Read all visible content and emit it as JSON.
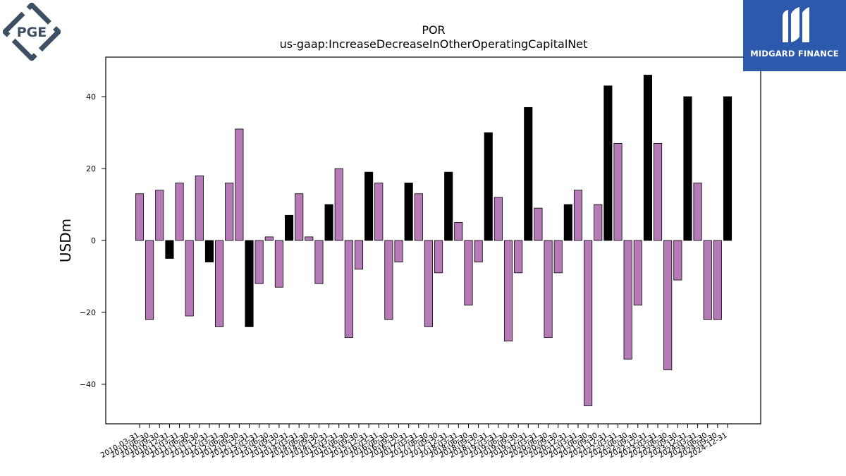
{
  "logos": {
    "left_text": "PGE",
    "right_text": "MIDGARD FINANCE"
  },
  "colors": {
    "positive_bar": "#000000",
    "negative_bar": "#b77ab8",
    "axis": "#000000",
    "logo_left": "#3d4f63",
    "logo_right_bg": "#2d59ad"
  },
  "chart_data": {
    "type": "bar",
    "title": "POR",
    "subtitle": "us-gaap:IncreaseDecreaseInOtherOperatingCapitalNet",
    "xlabel": "",
    "ylabel": "USDm",
    "ylim": [
      -51,
      51
    ],
    "yticks": [
      -40,
      -20,
      0,
      20,
      40
    ],
    "grid": false,
    "legend": "none",
    "categories": [
      "2010-03-31",
      "2010-06-30",
      "2010-09-30",
      "2010-12-31",
      "2011-03-31",
      "2011-06-30",
      "2011-09-30",
      "2011-12-31",
      "2012-03-31",
      "2012-06-30",
      "2012-09-30",
      "2012-12-31",
      "2013-03-31",
      "2013-06-30",
      "2013-09-30",
      "2013-12-31",
      "2014-03-31",
      "2014-06-30",
      "2014-09-30",
      "2014-12-31",
      "2015-03-31",
      "2015-06-30",
      "2015-09-30",
      "2015-12-31",
      "2016-03-31",
      "2016-06-30",
      "2016-09-30",
      "2016-12-31",
      "2017-03-31",
      "2017-06-30",
      "2017-09-30",
      "2017-12-31",
      "2018-03-31",
      "2018-06-30",
      "2018-09-30",
      "2018-12-31",
      "2019-03-31",
      "2019-06-30",
      "2019-09-30",
      "2019-12-31",
      "2020-03-31",
      "2020-06-30",
      "2020-09-30",
      "2020-12-31",
      "2021-03-31",
      "2021-06-30",
      "2021-09-30",
      "2021-12-31",
      "2022-03-31",
      "2022-06-30",
      "2022-09-30",
      "2022-12-31",
      "2023-03-31",
      "2023-06-30",
      "2023-09-30",
      "2023-12-31",
      "2024-03-31",
      "2024-06-30",
      "2024-09-30",
      "2024-12-31"
    ],
    "values": [
      13,
      -22,
      14,
      -5,
      16,
      -21,
      18,
      -6,
      -24,
      16,
      31,
      -24,
      -12,
      1,
      -13,
      7,
      13,
      1,
      -12,
      10,
      20,
      -27,
      -8,
      19,
      16,
      -22,
      -6,
      16,
      13,
      -24,
      -9,
      19,
      5,
      -18,
      -6,
      30,
      12,
      -28,
      -9,
      37,
      9,
      -27,
      -9,
      10,
      14,
      -46,
      10,
      43,
      27,
      -33,
      -18,
      46,
      27,
      -36,
      -11,
      40,
      16,
      -22,
      -22,
      40
    ],
    "bar_colors": [
      "#b77ab8",
      "#b77ab8",
      "#b77ab8",
      "#000000",
      "#b77ab8",
      "#b77ab8",
      "#b77ab8",
      "#000000",
      "#b77ab8",
      "#b77ab8",
      "#b77ab8",
      "#000000",
      "#b77ab8",
      "#b77ab8",
      "#b77ab8",
      "#000000",
      "#b77ab8",
      "#b77ab8",
      "#b77ab8",
      "#000000",
      "#b77ab8",
      "#b77ab8",
      "#b77ab8",
      "#000000",
      "#b77ab8",
      "#b77ab8",
      "#b77ab8",
      "#000000",
      "#b77ab8",
      "#b77ab8",
      "#b77ab8",
      "#000000",
      "#b77ab8",
      "#b77ab8",
      "#b77ab8",
      "#000000",
      "#b77ab8",
      "#b77ab8",
      "#b77ab8",
      "#000000",
      "#b77ab8",
      "#b77ab8",
      "#b77ab8",
      "#000000",
      "#b77ab8",
      "#b77ab8",
      "#b77ab8",
      "#000000",
      "#b77ab8",
      "#b77ab8",
      "#b77ab8",
      "#000000",
      "#b77ab8",
      "#b77ab8",
      "#b77ab8",
      "#000000",
      "#b77ab8",
      "#b77ab8",
      "#b77ab8",
      "#000000"
    ]
  }
}
